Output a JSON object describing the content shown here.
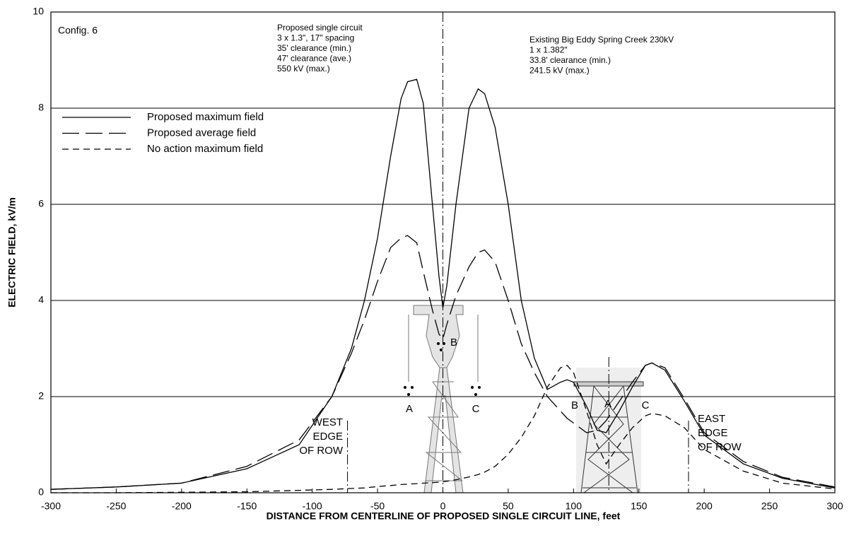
{
  "chart_data": {
    "type": "line",
    "x_label": "DISTANCE FROM CENTERLINE OF PROPOSED SINGLE CIRCUIT LINE, feet",
    "y_label": "ELECTRIC FIELD, kV/m",
    "config_label": "Config. 6",
    "proposed_note": [
      "Proposed single circuit",
      "3 x 1.3\", 17\" spacing",
      "35' clearance (min.)",
      "47' clearance (ave.)",
      "550 kV (max.)"
    ],
    "existing_note": [
      "Existing Big Eddy Spring Creek 230kV",
      "1 x 1.382\"",
      "33.8' clearance (min.)",
      "241.5 kV (max.)"
    ],
    "west_row": [
      "WEST",
      "EDGE",
      "OF ROW"
    ],
    "east_row": [
      "EAST",
      "EDGE",
      "OF ROW"
    ],
    "phase_labels": [
      "A",
      "B",
      "C",
      "B",
      "A",
      "C"
    ],
    "vlines": [
      -73,
      0,
      127,
      188
    ],
    "x": [
      -300,
      -250,
      -200,
      -150,
      -110,
      -85,
      -70,
      -60,
      -50,
      -40,
      -32,
      -27,
      -20,
      -15,
      -8,
      -3,
      0,
      3,
      10,
      20,
      27,
      32,
      40,
      50,
      60,
      70,
      80,
      90,
      95,
      100,
      110,
      118,
      125,
      135,
      145,
      155,
      160,
      170,
      185,
      200,
      230,
      260,
      300
    ],
    "series": [
      {
        "name": "Proposed maximum field",
        "color": "#000000",
        "dash": "solid",
        "values": [
          0.07,
          0.12,
          0.2,
          0.5,
          1.0,
          2.0,
          3.0,
          4.0,
          5.3,
          7.0,
          8.2,
          8.55,
          8.6,
          8.1,
          6.0,
          4.5,
          3.85,
          4.3,
          6.0,
          8.0,
          8.4,
          8.3,
          7.6,
          6.0,
          4.0,
          2.8,
          2.15,
          2.3,
          2.35,
          2.3,
          1.8,
          1.3,
          1.25,
          1.7,
          2.2,
          2.65,
          2.7,
          2.55,
          1.9,
          1.2,
          0.6,
          0.3,
          0.1
        ]
      },
      {
        "name": "Proposed average field",
        "color": "#000000",
        "dash": "long",
        "values": [
          0.07,
          0.12,
          0.2,
          0.55,
          1.1,
          2.0,
          2.9,
          3.6,
          4.4,
          5.1,
          5.3,
          5.35,
          5.2,
          4.6,
          3.8,
          3.3,
          3.2,
          3.5,
          4.1,
          4.7,
          5.0,
          5.05,
          4.8,
          4.0,
          3.1,
          2.5,
          2.0,
          1.7,
          1.55,
          1.45,
          1.25,
          1.3,
          1.5,
          1.9,
          2.3,
          2.65,
          2.7,
          2.6,
          1.95,
          1.25,
          0.65,
          0.32,
          0.12
        ]
      },
      {
        "name": "No action maximum field",
        "color": "#000000",
        "dash": "short",
        "values": [
          0,
          0,
          0.01,
          0.02,
          0.05,
          0.07,
          0.09,
          0.1,
          0.13,
          0.15,
          0.17,
          0.18,
          0.19,
          0.2,
          0.21,
          0.22,
          0.23,
          0.24,
          0.27,
          0.33,
          0.38,
          0.43,
          0.55,
          0.8,
          1.15,
          1.6,
          2.2,
          2.6,
          2.65,
          2.5,
          1.7,
          1.0,
          0.6,
          1.0,
          1.35,
          1.6,
          1.65,
          1.6,
          1.35,
          0.9,
          0.45,
          0.2,
          0.08
        ]
      }
    ],
    "xlim": [
      -300,
      300
    ],
    "xticks": [
      -300,
      -250,
      -200,
      -150,
      -100,
      -50,
      0,
      50,
      100,
      150,
      200,
      250,
      300
    ],
    "ylim": [
      0,
      10
    ],
    "yticks": [
      0,
      2,
      4,
      6,
      8,
      10
    ],
    "grid": true,
    "legend": "upper left"
  }
}
